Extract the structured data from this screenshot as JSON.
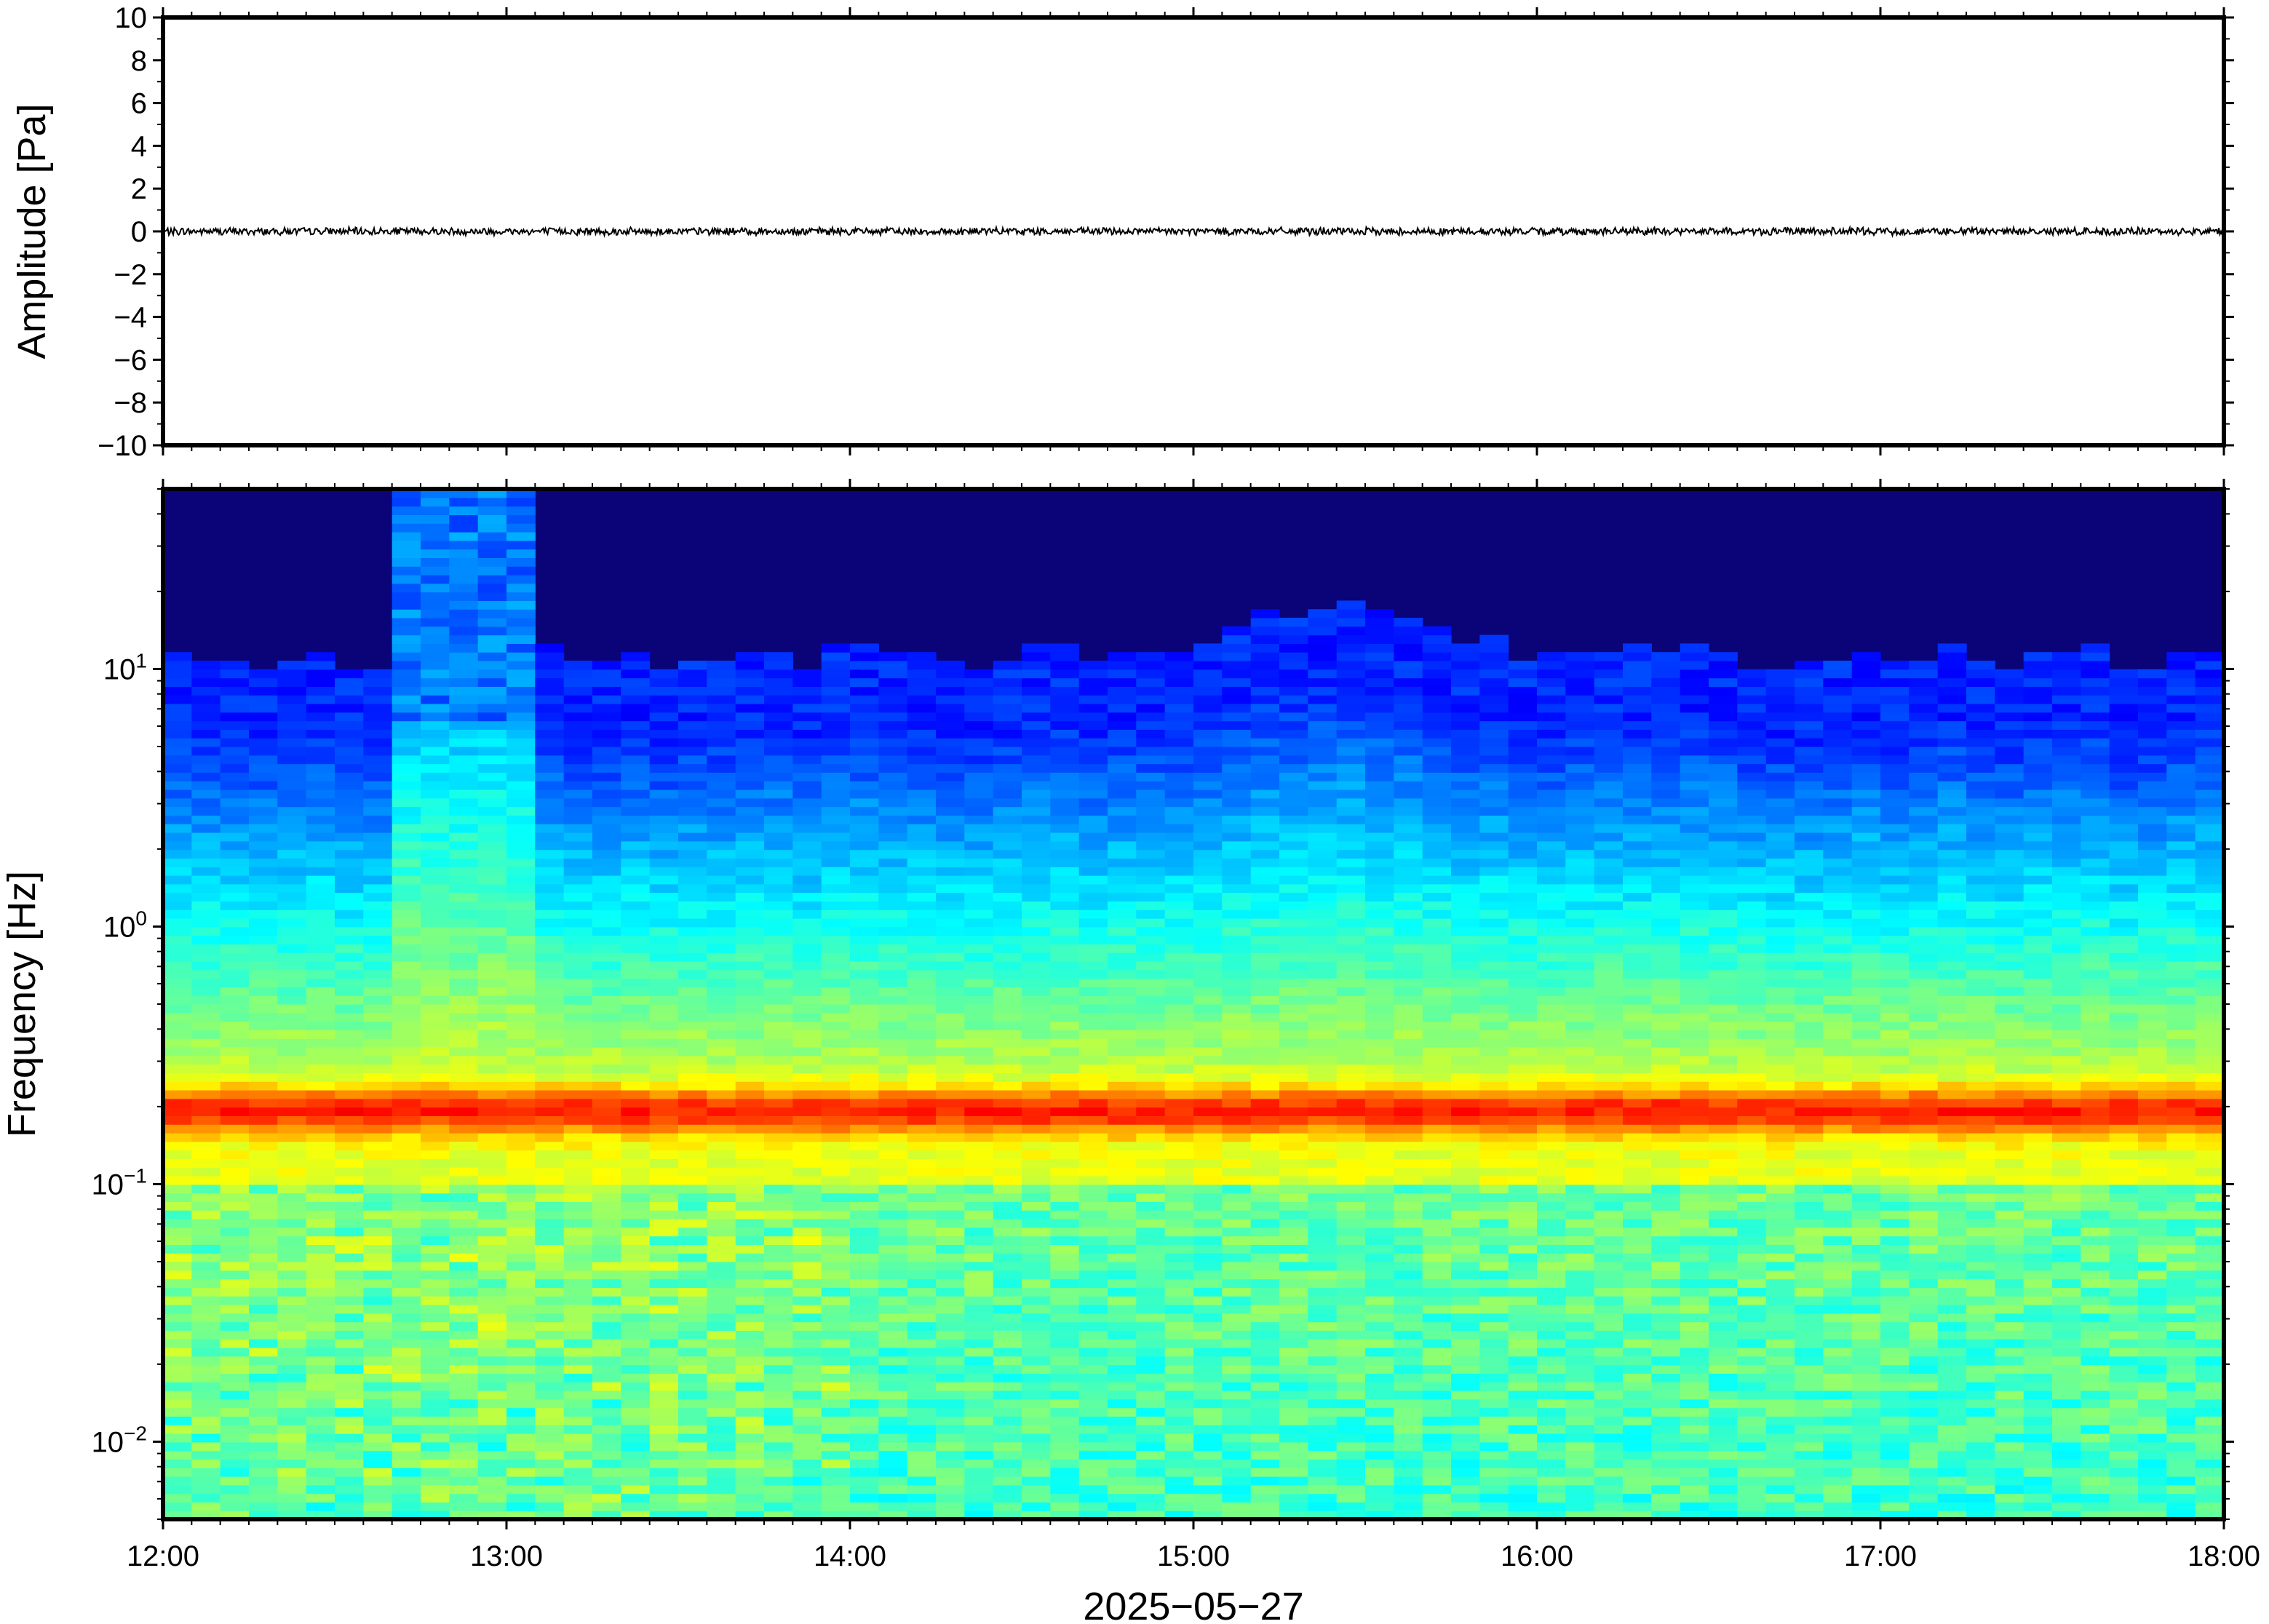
{
  "chart_data": [
    {
      "type": "line",
      "ylabel": "Amplitude [Pa]",
      "ylim": [
        -10,
        10
      ],
      "yticks": [
        10,
        8,
        6,
        4,
        2,
        0,
        -2,
        -4,
        -6,
        -8,
        -10
      ],
      "ytick_labels": [
        "10",
        "8",
        "6",
        "4",
        "2",
        "0",
        "−2",
        "−4",
        "−6",
        "−8",
        "−10"
      ],
      "series": [
        {
          "values_description_free": true,
          "x_range": [
            "12:00",
            "18:00"
          ],
          "y_level": 0.0,
          "noise_amplitude": 0.2
        }
      ],
      "grid": false
    },
    {
      "type": "heatmap",
      "ylabel": "Frequency [Hz]",
      "yscale": "log",
      "ylim": [
        0.005,
        50
      ],
      "yticks": [
        10,
        1,
        0.1,
        0.01
      ],
      "ytick_labels": [
        {
          "base": "10",
          "exp": "1"
        },
        {
          "base": "10",
          "exp": "0"
        },
        {
          "base": "10",
          "exp": "−1"
        },
        {
          "base": "10",
          "exp": "−2"
        }
      ],
      "colormap": "jet",
      "dominant_band_hz": [
        0.15,
        0.25
      ],
      "grid": false
    }
  ],
  "x_axis": {
    "ticks": [
      "12:00",
      "13:00",
      "14:00",
      "15:00",
      "16:00",
      "17:00",
      "18:00"
    ],
    "xlabel": "2025−05−27",
    "range_hours": [
      12,
      18
    ]
  }
}
